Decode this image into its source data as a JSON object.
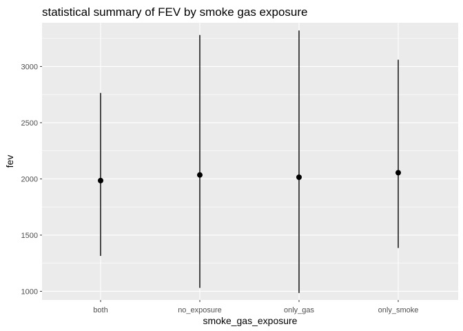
{
  "chart_data": {
    "type": "pointrange",
    "title": "statistical summary of FEV by smoke gas exposure",
    "xlabel": "smoke_gas_exposure",
    "ylabel": "fev",
    "categories": [
      "both",
      "no_exposure",
      "only_gas",
      "only_smoke"
    ],
    "series": [
      {
        "mean": [
          1985,
          2035,
          2015,
          2055
        ],
        "lower": [
          1315,
          1030,
          985,
          1385
        ],
        "upper": [
          2765,
          3280,
          3320,
          3060
        ]
      }
    ],
    "y_ticks": [
      1000,
      1500,
      2000,
      2500,
      3000
    ],
    "ylim": [
      923,
      3389
    ],
    "grid": true,
    "colors": {
      "panel_background": "#ebebeb",
      "grid_major": "#ffffff",
      "mark": "#000000"
    }
  }
}
